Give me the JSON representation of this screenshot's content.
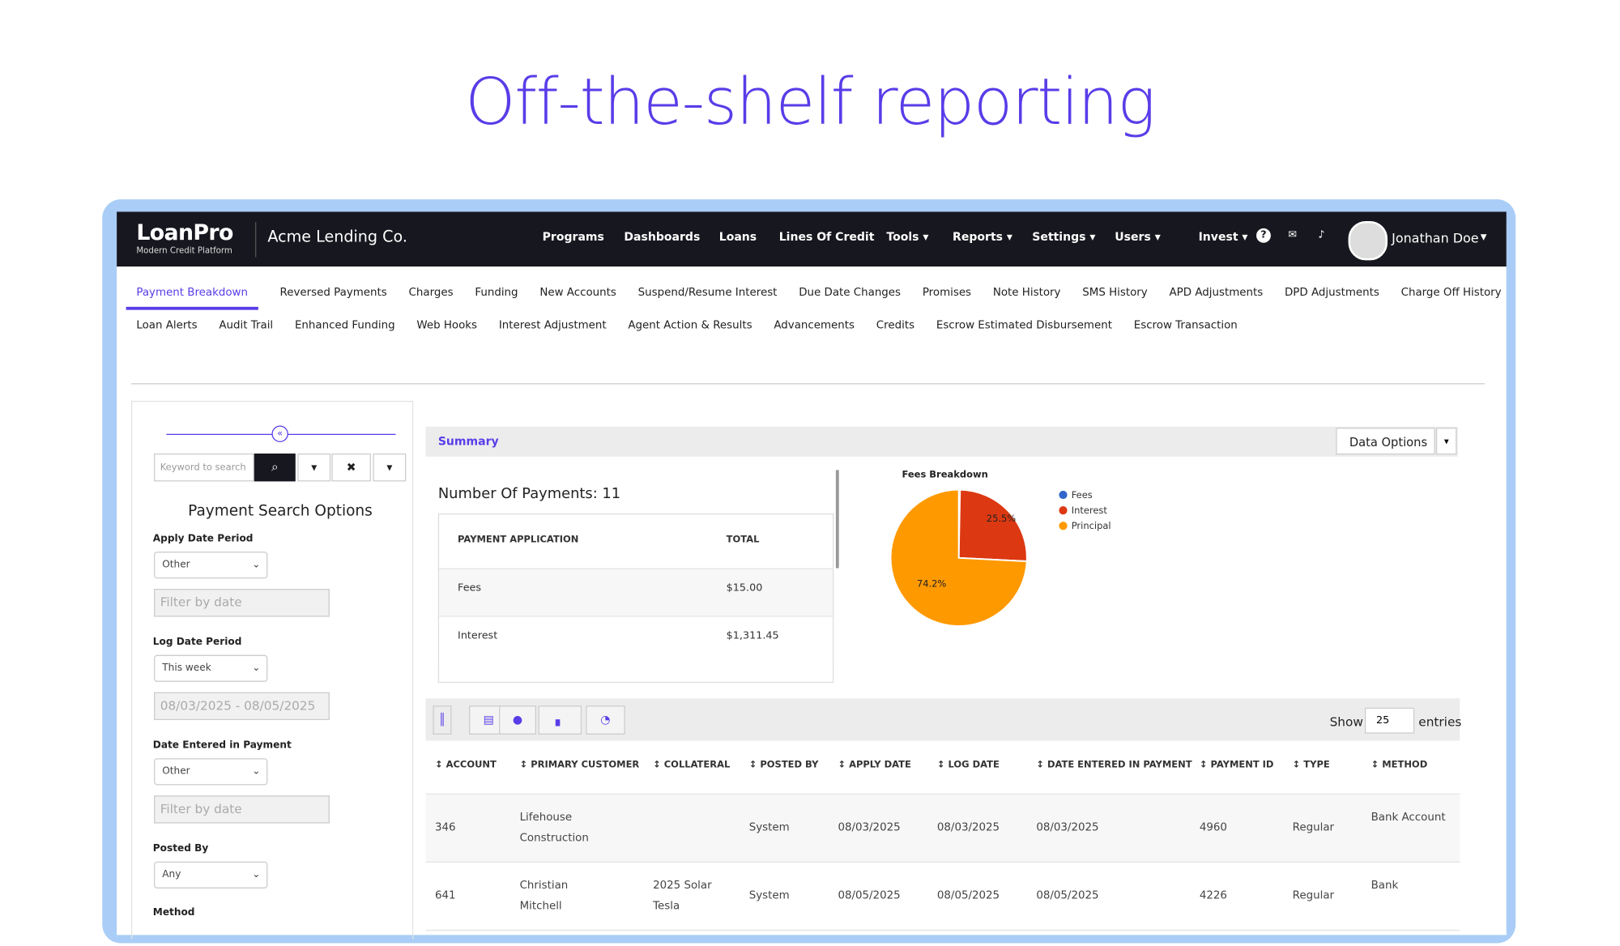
{
  "header": {
    "title": "Off-the-shelf reporting"
  },
  "navbar": {
    "logo": "LoanPro",
    "logo_subtitle": "Modern Credit Platform",
    "company": "Acme Lending Co.",
    "items": [
      "Programs",
      "Dashboards",
      "Loans",
      "Lines Of Credit",
      "Tools",
      "Reports",
      "Settings",
      "Users",
      "Invest"
    ],
    "user": "Jonathan Doe"
  },
  "tabs": {
    "row1": [
      "Payment Breakdown",
      "Reversed Payments",
      "Charges",
      "Funding",
      "New Accounts",
      "Suspend/Resume Interest",
      "Due Date Changes",
      "Promises",
      "Note History",
      "SMS History",
      "APD Adjustments",
      "DPD Adjustments",
      "Charge Off History"
    ],
    "row2": [
      "Loan Alerts",
      "Audit Trail",
      "Enhanced Funding",
      "Web Hooks",
      "Interest Adjustment",
      "Agent Action & Results",
      "Advancements",
      "Credits",
      "Escrow Estimated Disbursement",
      "Escrow Transaction"
    ]
  },
  "search": {
    "keyword_placeholder": "Keyword to search",
    "title": "Payment Search Options",
    "fields": [
      {
        "label": "Apply Date Period",
        "select": "Other",
        "input": "Filter by date"
      },
      {
        "label": "Log Date Period",
        "select": "This week",
        "input": "08/03/2025 - 08/05/2025"
      },
      {
        "label": "Date Entered in Payment",
        "select": "Other",
        "input": "Filter by date"
      },
      {
        "label": "Posted By",
        "select": "Any"
      }
    ],
    "last_label": "Method"
  },
  "summary": {
    "title": "Summary",
    "button": "Data Options",
    "count_text": "Number Of Payments: 11",
    "table": {
      "headers": [
        "PAYMENT APPLICATION",
        "TOTAL"
      ],
      "rows": [
        [
          "Fees",
          "$15.00"
        ],
        [
          "Interest",
          "$1,311.45"
        ]
      ]
    }
  },
  "chart_data": {
    "type": "pie",
    "title": "Fees Breakdown",
    "categories": [
      "Fees",
      "Interest",
      "Principal"
    ],
    "values": [
      0.3,
      25.5,
      74.2
    ],
    "value_labels": [
      null,
      "25.5%",
      "74.2%"
    ],
    "colors": [
      "#3366cc",
      "#dc3912",
      "#ff9900"
    ]
  },
  "payments": {
    "show": "Show",
    "page_size": "25",
    "entries": "entries",
    "headers": [
      "ACCOUNT",
      "PRIMARY CUSTOMER",
      "COLLATERAL",
      "POSTED BY",
      "APPLY DATE",
      "LOG DATE",
      "DATE ENTERED IN PAYMENT",
      "PAYMENT ID",
      "TYPE",
      "METHOD"
    ],
    "rows": [
      [
        "346",
        "Lifehouse Construction",
        null,
        "System",
        "08/03/2025",
        "08/03/2025",
        "08/03/2025",
        "4960",
        "Regular",
        "Bank Account"
      ],
      [
        "641",
        "Christian Mitchell",
        "2025 Solar Tesla",
        "System",
        "08/05/2025",
        "08/05/2025",
        "08/05/2025",
        "4226",
        "Regular",
        "Bank"
      ]
    ]
  }
}
